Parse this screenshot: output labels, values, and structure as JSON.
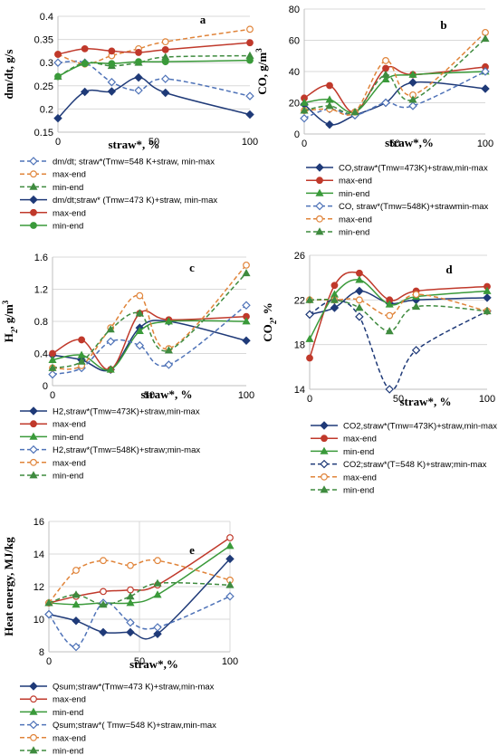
{
  "chart_data": [
    {
      "type": "line",
      "panel_label": "a",
      "ylabel": "dm/dt, g/s",
      "xlabel": "straw*, %",
      "x_ticks": [
        "0",
        "50",
        "100"
      ],
      "y_ticks": [
        "0.15",
        "0.2",
        "0.25",
        "0.3",
        "0.35",
        "0.4"
      ],
      "xlim": [
        0,
        100
      ],
      "ylim": [
        0.15,
        0.4
      ],
      "colors": {
        "dark_blue": "#1f3a78",
        "blue_dash": "#4f73b8",
        "red": "#c0392b",
        "orange": "#e0843a",
        "green": "#3a9a3a",
        "green_dash": "#3f8b3f"
      },
      "x": [
        0,
        14,
        28,
        42,
        56,
        100
      ],
      "series": [
        {
          "name": "dm/dt; straw*(Tmw=548 K+straw, min-max",
          "values": [
            0.3,
            0.3,
            0.258,
            0.24,
            0.265,
            0.228
          ],
          "color": "#4f73b8",
          "dash": true,
          "marker": "diamond-open"
        },
        {
          "name": "max-end",
          "values": [
            0.318,
            0.297,
            0.315,
            0.33,
            0.345,
            0.372
          ],
          "color": "#e0843a",
          "dash": true,
          "marker": "circle-open"
        },
        {
          "name": "min-end",
          "values": [
            0.27,
            0.3,
            0.293,
            0.3,
            0.312,
            0.315
          ],
          "color": "#3f8b3f",
          "dash": true,
          "marker": "triangle"
        },
        {
          "name": "dm/dt;straw* (Tmw=473 K)+straw, min-max",
          "values": [
            0.18,
            0.237,
            0.238,
            0.268,
            0.235,
            0.188
          ],
          "color": "#1f3a78",
          "dash": false,
          "marker": "diamond"
        },
        {
          "name": " max-end",
          "values": [
            0.318,
            0.33,
            0.325,
            0.322,
            0.328,
            0.343
          ],
          "color": "#c0392b",
          "dash": false,
          "marker": "circle"
        },
        {
          "name": "min-end",
          "values": [
            0.27,
            0.298,
            0.298,
            0.302,
            0.302,
            0.305
          ],
          "color": "#3a9a3a",
          "dash": false,
          "marker": "circle"
        }
      ]
    },
    {
      "type": "line",
      "panel_label": "b",
      "ylabel": "CO, g/m3",
      "xlabel": "straw*,%",
      "x_ticks": [
        "0",
        "50",
        "100"
      ],
      "y_ticks": [
        "0",
        "20",
        "40",
        "60",
        "80"
      ],
      "xlim": [
        0,
        100
      ],
      "ylim": [
        0,
        80
      ],
      "x": [
        0,
        14,
        28,
        45,
        60,
        100
      ],
      "series": [
        {
          "name": "CO,straw*(Tmw=473K)+straw,min-max",
          "values": [
            19,
            6,
            12,
            20,
            33,
            29
          ],
          "color": "#1f3a78",
          "dash": false,
          "marker": "diamond"
        },
        {
          "name": "max-end",
          "values": [
            23,
            31,
            14,
            42,
            38,
            43
          ],
          "color": "#c0392b",
          "dash": false,
          "marker": "circle"
        },
        {
          "name": "min-end",
          "values": [
            20,
            22,
            14,
            35,
            38,
            40
          ],
          "color": "#3a9a3a",
          "dash": false,
          "marker": "triangle"
        },
        {
          "name": "CO, straw*(Tmw=548K)+strawmin-max",
          "values": [
            10,
            16,
            12,
            20,
            18,
            40
          ],
          "color": "#4f73b8",
          "dash": true,
          "marker": "diamond-open"
        },
        {
          "name": "max-end",
          "values": [
            15,
            16,
            14,
            47,
            25,
            65
          ],
          "color": "#e0843a",
          "dash": true,
          "marker": "circle-open"
        },
        {
          "name": "min-end",
          "values": [
            15,
            18,
            14,
            38,
            22,
            61
          ],
          "color": "#3f8b3f",
          "dash": true,
          "marker": "triangle"
        }
      ]
    },
    {
      "type": "line",
      "panel_label": "c",
      "ylabel": "H2, g/m3",
      "xlabel": "straw*, %",
      "x_ticks": [
        "0",
        "50",
        "100"
      ],
      "y_ticks": [
        "0",
        "0.4",
        "0.8",
        "1.2",
        "1.6"
      ],
      "xlim": [
        0,
        100
      ],
      "ylim": [
        0,
        1.6
      ],
      "x": [
        0,
        15,
        30,
        45,
        60,
        100
      ],
      "series": [
        {
          "name": "H2,straw*(Tmw=473K)+straw,min-max",
          "values": [
            0.38,
            0.32,
            0.2,
            0.72,
            0.8,
            0.56
          ],
          "color": "#1f3a78",
          "dash": false,
          "marker": "diamond"
        },
        {
          "name": "max-end",
          "values": [
            0.4,
            0.57,
            0.2,
            0.9,
            0.82,
            0.86
          ],
          "color": "#c0392b",
          "dash": false,
          "marker": "circle"
        },
        {
          "name": "min-end",
          "values": [
            0.32,
            0.38,
            0.2,
            0.68,
            0.8,
            0.8
          ],
          "color": "#3a9a3a",
          "dash": false,
          "marker": "triangle"
        },
        {
          "name": "H2,straw*(Tmw=548K)+straw;min-max",
          "values": [
            0.14,
            0.22,
            0.55,
            0.5,
            0.26,
            1.0
          ],
          "color": "#4f73b8",
          "dash": true,
          "marker": "diamond-open"
        },
        {
          "name": "max-end",
          "values": [
            0.22,
            0.25,
            0.72,
            1.12,
            0.46,
            1.5
          ],
          "color": "#e0843a",
          "dash": true,
          "marker": "circle-open"
        },
        {
          "name": "min-end",
          "values": [
            0.22,
            0.3,
            0.7,
            0.9,
            0.44,
            1.4
          ],
          "color": "#3f8b3f",
          "dash": true,
          "marker": "triangle"
        }
      ]
    },
    {
      "type": "line",
      "panel_label": "d",
      "ylabel": "CO2, %",
      "xlabel": "straw*, %",
      "x_ticks": [
        "0",
        "50",
        "100"
      ],
      "y_ticks": [
        "14",
        "18",
        "22",
        "26"
      ],
      "xlim": [
        0,
        100
      ],
      "ylim": [
        14,
        26
      ],
      "x": [
        0,
        14,
        28,
        45,
        60,
        100
      ],
      "series": [
        {
          "name": "CO2,straw*(Tmw=473K)+straw,min-max",
          "values": [
            20.7,
            21.3,
            22.8,
            21.7,
            22.0,
            22.2
          ],
          "color": "#1f3a78",
          "dash": false,
          "marker": "diamond"
        },
        {
          "name": "max-end",
          "values": [
            16.8,
            23.3,
            24.4,
            22.0,
            22.8,
            23.2
          ],
          "color": "#c0392b",
          "dash": false,
          "marker": "circle"
        },
        {
          "name": "min-end",
          "values": [
            18.5,
            22.5,
            23.8,
            21.6,
            22.3,
            22.8
          ],
          "color": "#3a9a3a",
          "dash": false,
          "marker": "triangle"
        },
        {
          "name": "CO2;straw*(T=548 K)+straw;min-max",
          "values": [
            20.7,
            22.0,
            20.5,
            14.0,
            17.5,
            21.0
          ],
          "color": "#1f3a78",
          "dash": true,
          "marker": "diamond-open"
        },
        {
          "name": "max-end",
          "values": [
            22.0,
            22.0,
            22.0,
            20.6,
            22.5,
            21.0
          ],
          "color": "#e0843a",
          "dash": true,
          "marker": "circle-open"
        },
        {
          "name": "min-end",
          "values": [
            22.0,
            22.0,
            21.3,
            19.2,
            21.4,
            21.0
          ],
          "color": "#3f8b3f",
          "dash": true,
          "marker": "triangle"
        }
      ]
    },
    {
      "type": "line",
      "panel_label": "e",
      "ylabel": "Heat energy, MJ/kg",
      "xlabel": "straw*,%",
      "x_ticks": [
        "0",
        "50",
        "100"
      ],
      "y_ticks": [
        "8",
        "10",
        "12",
        "14",
        "16"
      ],
      "xlim": [
        0,
        100
      ],
      "ylim": [
        8,
        16
      ],
      "x": [
        0,
        15,
        30,
        45,
        60,
        100
      ],
      "series": [
        {
          "name": "Qsum;straw*(Tmw=473 K)+straw,min-max",
          "values": [
            10.3,
            9.9,
            9.2,
            9.2,
            9.1,
            13.7
          ],
          "color": "#1f3a78",
          "dash": false,
          "marker": "diamond"
        },
        {
          "name": "max-end",
          "values": [
            11.0,
            11.4,
            11.7,
            11.8,
            12.1,
            15.0
          ],
          "color": "#c0392b",
          "dash": false,
          "marker": "circle-open"
        },
        {
          "name": "min-end",
          "values": [
            11.0,
            10.9,
            11.0,
            11.0,
            11.5,
            14.5
          ],
          "color": "#3a9a3a",
          "dash": false,
          "marker": "triangle"
        },
        {
          "name": "Qsum;straw*( Tmw=548 K)+straw,min-max",
          "values": [
            10.3,
            8.3,
            11.0,
            9.8,
            9.5,
            11.4
          ],
          "color": "#4f73b8",
          "dash": true,
          "marker": "diamond-open"
        },
        {
          "name": "max-end",
          "values": [
            11.0,
            13.0,
            13.6,
            13.3,
            13.6,
            12.4
          ],
          "color": "#e0843a",
          "dash": true,
          "marker": "circle-open"
        },
        {
          "name": "min-end",
          "values": [
            11.0,
            11.5,
            10.9,
            11.4,
            12.2,
            12.1
          ],
          "color": "#3f8b3f",
          "dash": true,
          "marker": "triangle"
        }
      ]
    }
  ]
}
